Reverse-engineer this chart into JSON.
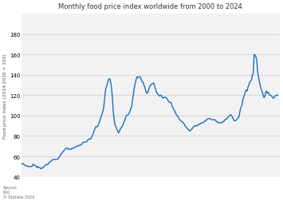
{
  "title": "Monthly food price index worldwide from 2000 to 2024",
  "ylabel": "Food price index (2014-2016 = 100)",
  "source_text": "Source:\nFAO\n© Statista 2024",
  "line_color": "#1a6fba",
  "background_color": "#ffffff",
  "plot_bg_color": "#f2f2f2",
  "ylim": [
    40,
    200
  ],
  "yticks": [
    40,
    60,
    80,
    100,
    120,
    140,
    160,
    180
  ],
  "xlim_start": 2000.0,
  "xlim_end": 2024.6,
  "data": [
    [
      2000.0,
      52
    ],
    [
      2000.08,
      53
    ],
    [
      2000.17,
      53
    ],
    [
      2000.25,
      52
    ],
    [
      2000.33,
      51
    ],
    [
      2000.42,
      51
    ],
    [
      2000.5,
      51
    ],
    [
      2000.58,
      50
    ],
    [
      2000.67,
      50
    ],
    [
      2000.75,
      50
    ],
    [
      2000.83,
      50
    ],
    [
      2000.92,
      50
    ],
    [
      2001.0,
      50
    ],
    [
      2001.08,
      52
    ],
    [
      2001.17,
      52
    ],
    [
      2001.25,
      51
    ],
    [
      2001.33,
      51
    ],
    [
      2001.42,
      50
    ],
    [
      2001.5,
      49
    ],
    [
      2001.58,
      50
    ],
    [
      2001.67,
      49
    ],
    [
      2001.75,
      49
    ],
    [
      2001.83,
      48
    ],
    [
      2001.92,
      48
    ],
    [
      2002.0,
      49
    ],
    [
      2002.08,
      49
    ],
    [
      2002.17,
      50
    ],
    [
      2002.25,
      51
    ],
    [
      2002.33,
      52
    ],
    [
      2002.42,
      52
    ],
    [
      2002.5,
      52
    ],
    [
      2002.58,
      53
    ],
    [
      2002.67,
      54
    ],
    [
      2002.75,
      55
    ],
    [
      2002.83,
      55
    ],
    [
      2002.92,
      56
    ],
    [
      2003.0,
      57
    ],
    [
      2003.08,
      57
    ],
    [
      2003.17,
      57
    ],
    [
      2003.25,
      57
    ],
    [
      2003.33,
      57
    ],
    [
      2003.42,
      57
    ],
    [
      2003.5,
      58
    ],
    [
      2003.58,
      59
    ],
    [
      2003.67,
      60
    ],
    [
      2003.75,
      62
    ],
    [
      2003.83,
      63
    ],
    [
      2003.92,
      64
    ],
    [
      2004.0,
      65
    ],
    [
      2004.08,
      66
    ],
    [
      2004.17,
      67
    ],
    [
      2004.25,
      68
    ],
    [
      2004.33,
      68
    ],
    [
      2004.42,
      68
    ],
    [
      2004.5,
      67
    ],
    [
      2004.58,
      67
    ],
    [
      2004.67,
      67
    ],
    [
      2004.75,
      67
    ],
    [
      2004.83,
      68
    ],
    [
      2004.92,
      68
    ],
    [
      2005.0,
      68
    ],
    [
      2005.08,
      69
    ],
    [
      2005.17,
      69
    ],
    [
      2005.25,
      70
    ],
    [
      2005.33,
      70
    ],
    [
      2005.42,
      70
    ],
    [
      2005.5,
      71
    ],
    [
      2005.58,
      71
    ],
    [
      2005.67,
      71
    ],
    [
      2005.75,
      72
    ],
    [
      2005.83,
      73
    ],
    [
      2005.92,
      74
    ],
    [
      2006.0,
      74
    ],
    [
      2006.08,
      74
    ],
    [
      2006.17,
      74
    ],
    [
      2006.25,
      75
    ],
    [
      2006.33,
      76
    ],
    [
      2006.42,
      77
    ],
    [
      2006.5,
      77
    ],
    [
      2006.58,
      77
    ],
    [
      2006.67,
      78
    ],
    [
      2006.75,
      80
    ],
    [
      2006.83,
      82
    ],
    [
      2006.92,
      85
    ],
    [
      2007.0,
      87
    ],
    [
      2007.08,
      89
    ],
    [
      2007.17,
      89
    ],
    [
      2007.25,
      89
    ],
    [
      2007.33,
      91
    ],
    [
      2007.42,
      93
    ],
    [
      2007.5,
      96
    ],
    [
      2007.58,
      99
    ],
    [
      2007.67,
      101
    ],
    [
      2007.75,
      104
    ],
    [
      2007.83,
      107
    ],
    [
      2007.92,
      116
    ],
    [
      2008.0,
      124
    ],
    [
      2008.08,
      128
    ],
    [
      2008.17,
      130
    ],
    [
      2008.25,
      134
    ],
    [
      2008.33,
      136
    ],
    [
      2008.42,
      136
    ],
    [
      2008.5,
      133
    ],
    [
      2008.58,
      128
    ],
    [
      2008.67,
      117
    ],
    [
      2008.75,
      104
    ],
    [
      2008.83,
      96
    ],
    [
      2008.92,
      91
    ],
    [
      2009.0,
      89
    ],
    [
      2009.08,
      87
    ],
    [
      2009.17,
      85
    ],
    [
      2009.25,
      83
    ],
    [
      2009.33,
      84
    ],
    [
      2009.42,
      87
    ],
    [
      2009.5,
      88
    ],
    [
      2009.58,
      89
    ],
    [
      2009.67,
      91
    ],
    [
      2009.75,
      93
    ],
    [
      2009.83,
      95
    ],
    [
      2009.92,
      98
    ],
    [
      2010.0,
      100
    ],
    [
      2010.08,
      100
    ],
    [
      2010.17,
      101
    ],
    [
      2010.25,
      102
    ],
    [
      2010.33,
      104
    ],
    [
      2010.42,
      107
    ],
    [
      2010.5,
      108
    ],
    [
      2010.58,
      115
    ],
    [
      2010.67,
      121
    ],
    [
      2010.75,
      127
    ],
    [
      2010.83,
      131
    ],
    [
      2010.92,
      135
    ],
    [
      2011.0,
      138
    ],
    [
      2011.08,
      137
    ],
    [
      2011.17,
      138
    ],
    [
      2011.25,
      138
    ],
    [
      2011.33,
      138
    ],
    [
      2011.42,
      135
    ],
    [
      2011.5,
      133
    ],
    [
      2011.58,
      133
    ],
    [
      2011.67,
      130
    ],
    [
      2011.75,
      128
    ],
    [
      2011.83,
      125
    ],
    [
      2011.92,
      122
    ],
    [
      2012.0,
      122
    ],
    [
      2012.08,
      124
    ],
    [
      2012.17,
      127
    ],
    [
      2012.25,
      129
    ],
    [
      2012.33,
      130
    ],
    [
      2012.42,
      131
    ],
    [
      2012.5,
      131
    ],
    [
      2012.58,
      132
    ],
    [
      2012.67,
      130
    ],
    [
      2012.75,
      127
    ],
    [
      2012.83,
      124
    ],
    [
      2012.92,
      122
    ],
    [
      2013.0,
      121
    ],
    [
      2013.08,
      120
    ],
    [
      2013.17,
      119
    ],
    [
      2013.25,
      120
    ],
    [
      2013.33,
      120
    ],
    [
      2013.42,
      118
    ],
    [
      2013.5,
      117
    ],
    [
      2013.58,
      118
    ],
    [
      2013.67,
      118
    ],
    [
      2013.75,
      118
    ],
    [
      2013.83,
      117
    ],
    [
      2013.92,
      116
    ],
    [
      2014.0,
      114
    ],
    [
      2014.08,
      113
    ],
    [
      2014.17,
      113
    ],
    [
      2014.25,
      113
    ],
    [
      2014.33,
      110
    ],
    [
      2014.42,
      108
    ],
    [
      2014.5,
      106
    ],
    [
      2014.58,
      105
    ],
    [
      2014.67,
      103
    ],
    [
      2014.75,
      101
    ],
    [
      2014.83,
      100
    ],
    [
      2014.92,
      99
    ],
    [
      2015.0,
      97
    ],
    [
      2015.08,
      96
    ],
    [
      2015.17,
      95
    ],
    [
      2015.25,
      94
    ],
    [
      2015.33,
      94
    ],
    [
      2015.42,
      93
    ],
    [
      2015.5,
      92
    ],
    [
      2015.58,
      90
    ],
    [
      2015.67,
      89
    ],
    [
      2015.75,
      88
    ],
    [
      2015.83,
      87
    ],
    [
      2015.92,
      86
    ],
    [
      2016.0,
      85
    ],
    [
      2016.08,
      85
    ],
    [
      2016.17,
      86
    ],
    [
      2016.25,
      87
    ],
    [
      2016.33,
      88
    ],
    [
      2016.42,
      89
    ],
    [
      2016.5,
      90
    ],
    [
      2016.58,
      90
    ],
    [
      2016.67,
      90
    ],
    [
      2016.75,
      90
    ],
    [
      2016.83,
      91
    ],
    [
      2016.92,
      91
    ],
    [
      2017.0,
      92
    ],
    [
      2017.08,
      92
    ],
    [
      2017.17,
      93
    ],
    [
      2017.25,
      93
    ],
    [
      2017.33,
      93
    ],
    [
      2017.42,
      94
    ],
    [
      2017.5,
      95
    ],
    [
      2017.58,
      95
    ],
    [
      2017.67,
      96
    ],
    [
      2017.75,
      97
    ],
    [
      2017.83,
      97
    ],
    [
      2017.92,
      97
    ],
    [
      2018.0,
      97
    ],
    [
      2018.08,
      96
    ],
    [
      2018.17,
      96
    ],
    [
      2018.25,
      96
    ],
    [
      2018.33,
      96
    ],
    [
      2018.42,
      96
    ],
    [
      2018.5,
      95
    ],
    [
      2018.58,
      94
    ],
    [
      2018.67,
      94
    ],
    [
      2018.75,
      93
    ],
    [
      2018.83,
      93
    ],
    [
      2018.92,
      93
    ],
    [
      2019.0,
      93
    ],
    [
      2019.08,
      93
    ],
    [
      2019.17,
      94
    ],
    [
      2019.25,
      94
    ],
    [
      2019.33,
      95
    ],
    [
      2019.42,
      96
    ],
    [
      2019.5,
      97
    ],
    [
      2019.58,
      97
    ],
    [
      2019.67,
      98
    ],
    [
      2019.75,
      99
    ],
    [
      2019.83,
      100
    ],
    [
      2019.92,
      101
    ],
    [
      2020.0,
      100
    ],
    [
      2020.08,
      99
    ],
    [
      2020.17,
      97
    ],
    [
      2020.25,
      95
    ],
    [
      2020.33,
      95
    ],
    [
      2020.42,
      95
    ],
    [
      2020.5,
      96
    ],
    [
      2020.58,
      97
    ],
    [
      2020.67,
      98
    ],
    [
      2020.75,
      100
    ],
    [
      2020.83,
      105
    ],
    [
      2020.92,
      108
    ],
    [
      2021.0,
      110
    ],
    [
      2021.08,
      115
    ],
    [
      2021.17,
      118
    ],
    [
      2021.25,
      120
    ],
    [
      2021.33,
      124
    ],
    [
      2021.42,
      125
    ],
    [
      2021.5,
      124
    ],
    [
      2021.58,
      128
    ],
    [
      2021.67,
      130
    ],
    [
      2021.75,
      133
    ],
    [
      2021.83,
      134
    ],
    [
      2021.92,
      135
    ],
    [
      2022.0,
      140
    ],
    [
      2022.08,
      141
    ],
    [
      2022.17,
      160
    ],
    [
      2022.25,
      159
    ],
    [
      2022.33,
      158
    ],
    [
      2022.42,
      154
    ],
    [
      2022.5,
      143
    ],
    [
      2022.58,
      138
    ],
    [
      2022.67,
      133
    ],
    [
      2022.75,
      129
    ],
    [
      2022.83,
      126
    ],
    [
      2022.92,
      124
    ],
    [
      2023.0,
      121
    ],
    [
      2023.08,
      118
    ],
    [
      2023.17,
      118
    ],
    [
      2023.25,
      122
    ],
    [
      2023.33,
      124
    ],
    [
      2023.42,
      122
    ],
    [
      2023.5,
      123
    ],
    [
      2023.58,
      121
    ],
    [
      2023.67,
      120
    ],
    [
      2023.75,
      120
    ],
    [
      2023.83,
      119
    ],
    [
      2023.92,
      118
    ],
    [
      2024.0,
      117
    ],
    [
      2024.08,
      118
    ],
    [
      2024.17,
      119
    ],
    [
      2024.25,
      120
    ],
    [
      2024.33,
      120
    ],
    [
      2024.42,
      120
    ]
  ]
}
